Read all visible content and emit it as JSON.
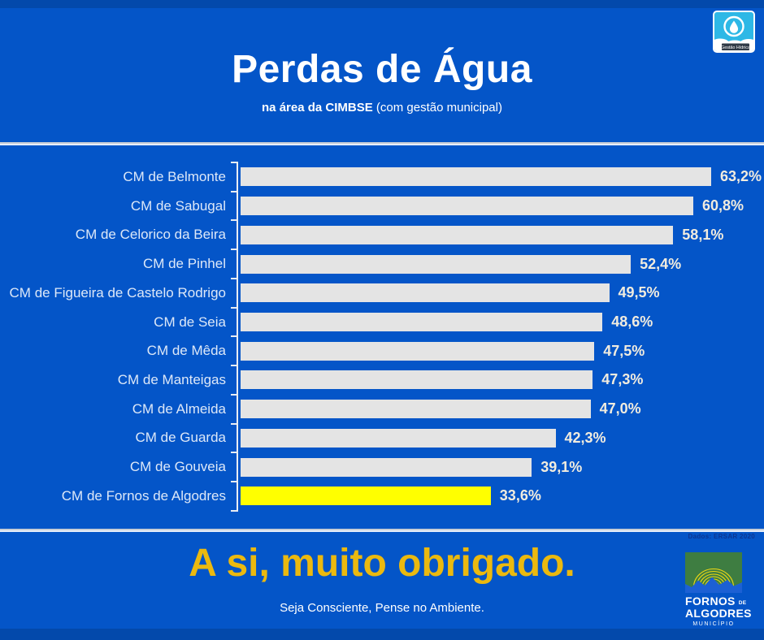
{
  "colors": {
    "background": "#0455C8",
    "accent_gold": "#EBB90F",
    "bar_gray": "#E4E4E4",
    "bar_highlight": "#FFFF00",
    "axis_white": "#EAEDF3",
    "logo_cyan": "#2EB8E6",
    "logo_green": "#3E7D41"
  },
  "header": {
    "title": "Perdas de Água",
    "subtitle_bold": "na área da CIMBSE",
    "subtitle_regular": "(com gestão municipal)"
  },
  "logos": {
    "gestao_hidrica": {
      "label": "Gestão Hídrica"
    },
    "municipio": {
      "line1": "FORNOS",
      "line1_small": "DE",
      "line2": "ALGODRES",
      "line3": "MUNICÍPIO"
    }
  },
  "chart_data": {
    "type": "bar",
    "orientation": "horizontal",
    "title": "Perdas de Água na área da CIMBSE (com gestão municipal)",
    "categories": [
      "CM de Belmonte",
      "CM de Sabugal",
      "CM de Celorico da Beira",
      "CM de Pinhel",
      "CM de Figueira de Castelo Rodrigo",
      "CM de Seia",
      "CM de Mêda",
      "CM de Manteigas",
      "CM de Almeida",
      "CM de Guarda",
      "CM de Gouveia",
      "CM de Fornos de Algodres"
    ],
    "values": [
      63.2,
      60.8,
      58.1,
      52.4,
      49.5,
      48.6,
      47.5,
      47.3,
      47.0,
      42.3,
      39.1,
      33.6
    ],
    "value_labels": [
      "63,2%",
      "60,8%",
      "58,1%",
      "52,4%",
      "49,5%",
      "48,6%",
      "47,5%",
      "47,3%",
      "47,0%",
      "42,3%",
      "39,1%",
      "33,6%"
    ],
    "unit": "%",
    "xlim": [
      0,
      65
    ],
    "grid": false,
    "legend": false,
    "highlight_index": 11,
    "bar_color": "#E4E4E4",
    "highlight_color": "#FFFF00"
  },
  "source_note": "Dados: ERSAR 2020",
  "footer": {
    "headline": "A si, muito obrigado.",
    "tagline": "Seja Consciente, Pense no Ambiente."
  }
}
